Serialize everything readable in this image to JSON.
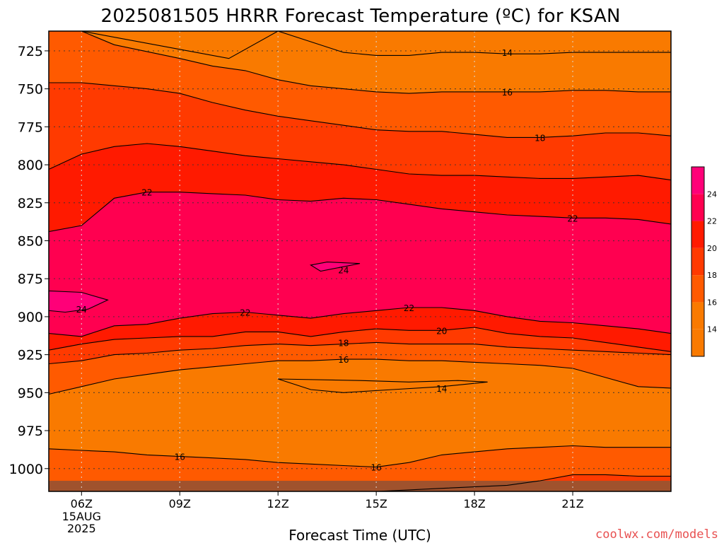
{
  "chart_data": {
    "type": "contour",
    "title": "2025081505 HRRR Forecast Temperature (ºC) for KSAN",
    "xlabel": "Forecast Time (UTC)",
    "ylabel": "",
    "watermark": "coolwx.com/models",
    "x_unit": "hours UTC (2025-08-15)",
    "xlim": [
      5,
      24
    ],
    "ylim": [
      1015,
      712
    ],
    "x_ticks": [
      {
        "x": 6,
        "label": "06Z",
        "sub": [
          "15AUG",
          "2025"
        ]
      },
      {
        "x": 9,
        "label": "09Z",
        "sub": []
      },
      {
        "x": 12,
        "label": "12Z",
        "sub": []
      },
      {
        "x": 15,
        "label": "15Z",
        "sub": []
      },
      {
        "x": 18,
        "label": "18Z",
        "sub": []
      },
      {
        "x": 21,
        "label": "21Z",
        "sub": []
      }
    ],
    "y_ticks": [
      725,
      750,
      775,
      800,
      825,
      850,
      875,
      900,
      925,
      950,
      975,
      1000
    ],
    "grid": true,
    "levels": [
      14,
      16,
      18,
      20,
      22,
      24
    ],
    "colorbar": {
      "labels": [
        "14",
        "16",
        "18",
        "20",
        "22",
        "24"
      ],
      "colors": [
        "#f97a00",
        "#ff5a00",
        "#ff3a00",
        "#ff1a00",
        "#ff0050",
        "#ff0078"
      ]
    },
    "fills": [
      {
        "value_range": "<14",
        "color": "#f97a00"
      },
      {
        "value_range": "14-16",
        "color": "#f97a00"
      },
      {
        "value_range": "16-18",
        "color": "#ff5a00"
      },
      {
        "value_range": "18-20",
        "color": "#ff3a00"
      },
      {
        "value_range": "20-22",
        "color": "#ff1a00"
      },
      {
        "value_range": "22-24",
        "color": "#ff0050"
      },
      {
        "value_range": ">24",
        "color": "#ff0078"
      }
    ],
    "contours": [
      {
        "level": 14,
        "x": [
          5,
          6,
          9,
          10.5,
          12,
          14,
          15,
          16,
          17,
          18,
          19,
          20,
          21,
          22,
          23,
          24
        ],
        "y": [
          712,
          712,
          724,
          730,
          712,
          726,
          728,
          728,
          726,
          726,
          727,
          727,
          726,
          726,
          726,
          726
        ]
      },
      {
        "level": 16,
        "x": [
          5,
          6,
          7,
          9,
          10,
          11,
          12,
          13,
          14,
          15,
          16,
          17,
          18,
          19,
          20,
          21,
          22,
          23,
          24
        ],
        "y": [
          712,
          712,
          721,
          730,
          735,
          738,
          744,
          748,
          750,
          752,
          753,
          752,
          752,
          752,
          752,
          751,
          751,
          752,
          752
        ]
      },
      {
        "level": 18,
        "x": [
          5,
          6,
          7,
          8,
          9,
          10,
          11,
          12,
          13,
          14,
          15,
          16,
          17,
          18,
          19,
          20,
          21,
          22,
          23,
          24
        ],
        "y": [
          746,
          746,
          748,
          750,
          753,
          759,
          764,
          768,
          771,
          774,
          777,
          778,
          778,
          780,
          782,
          782,
          781,
          779,
          779,
          781
        ]
      },
      {
        "level": 20,
        "x": [
          5,
          6,
          7,
          8,
          9,
          10,
          11,
          12,
          13,
          14,
          15,
          16,
          17,
          18,
          19,
          20,
          21,
          22,
          23,
          24
        ],
        "y": [
          803,
          793,
          788,
          786,
          788,
          791,
          794,
          796,
          798,
          800,
          803,
          806,
          807,
          807,
          808,
          809,
          809,
          808,
          807,
          810
        ]
      },
      {
        "level": 22,
        "x": [
          5,
          6,
          7,
          8,
          9,
          10,
          11,
          12,
          13,
          14,
          15,
          16,
          17,
          18,
          19,
          20,
          21,
          22,
          23,
          24
        ],
        "y": [
          844,
          840,
          822,
          818,
          818,
          819,
          820,
          823,
          824,
          822,
          823,
          826,
          829,
          831,
          833,
          834,
          835,
          835,
          836,
          839
        ]
      },
      {
        "level": 24,
        "x": [
          13,
          13.5,
          14.5,
          13.3,
          13
        ],
        "y": [
          866,
          864,
          865,
          870,
          866
        ],
        "closed": true
      },
      {
        "level": 24,
        "x": [
          5,
          6,
          6.8,
          6.2,
          5.5,
          5
        ],
        "y": [
          883,
          884,
          889,
          895,
          897,
          896
        ],
        "closed": true
      },
      {
        "level": 22,
        "x": [
          5,
          6,
          7,
          8,
          9,
          10,
          11,
          12,
          13,
          14,
          15,
          16,
          17,
          18,
          19,
          20,
          21,
          22,
          23,
          24
        ],
        "y": [
          911,
          913,
          906,
          905,
          901,
          898,
          897,
          899,
          901,
          898,
          896,
          894,
          894,
          896,
          900,
          903,
          904,
          906,
          908,
          911
        ]
      },
      {
        "level": 20,
        "x": [
          5,
          6,
          7,
          8,
          9,
          10,
          11,
          12,
          13,
          14,
          15,
          16,
          17,
          18,
          19,
          20,
          21,
          22,
          23,
          24
        ],
        "y": [
          922,
          918,
          915,
          914,
          913,
          913,
          910,
          910,
          913,
          910,
          908,
          909,
          909,
          907,
          911,
          913,
          914,
          917,
          920,
          923
        ]
      },
      {
        "level": 18,
        "x": [
          5,
          6,
          7,
          8,
          9,
          10,
          11,
          12,
          13,
          14,
          15,
          16,
          17,
          18,
          19,
          20,
          21,
          22,
          23,
          24
        ],
        "y": [
          931,
          929,
          925,
          924,
          922,
          921,
          919,
          918,
          919,
          918,
          917,
          918,
          918,
          918,
          920,
          921,
          922,
          923,
          924,
          925
        ]
      },
      {
        "level": 16,
        "x": [
          5,
          6,
          7,
          8,
          9,
          10,
          11,
          12,
          13,
          14,
          15,
          16,
          17,
          18,
          19,
          20,
          21,
          22,
          23,
          24
        ],
        "y": [
          951,
          946,
          941,
          938,
          935,
          933,
          931,
          929,
          929,
          928,
          928,
          929,
          929,
          930,
          931,
          932,
          934,
          940,
          946,
          947
        ]
      },
      {
        "level": 14,
        "x": [
          12.0,
          14.5,
          16.0,
          17.5,
          18.4,
          17.0,
          15.5,
          14.0,
          13.0,
          12.0
        ],
        "y": [
          941,
          942,
          943,
          942,
          943,
          946,
          948,
          950,
          948,
          941
        ],
        "closed": true
      },
      {
        "level": 16,
        "x": [
          5,
          6,
          7,
          8,
          9,
          10,
          11,
          12,
          13,
          14,
          15,
          16,
          17,
          18,
          19,
          20,
          21,
          22,
          23,
          24
        ],
        "y": [
          987,
          988,
          989,
          991,
          992,
          993,
          994,
          996,
          997,
          998,
          999,
          996,
          991,
          989,
          987,
          986,
          985,
          986,
          986,
          986
        ]
      },
      {
        "level": 18,
        "x": [
          5,
          6,
          7,
          8,
          9,
          10,
          11,
          12,
          13,
          14,
          15,
          16,
          17,
          18,
          19,
          20,
          21,
          22,
          23,
          24
        ],
        "y": [
          1015,
          1015,
          1015,
          1015,
          1015,
          1015,
          1015,
          1015,
          1015,
          1015,
          1015,
          1014,
          1013,
          1012,
          1011,
          1008,
          1004,
          1004,
          1005,
          1005
        ]
      }
    ],
    "contour_labels": [
      {
        "text": "14",
        "x": 19.0,
        "y": 726
      },
      {
        "text": "16",
        "x": 19.0,
        "y": 752
      },
      {
        "text": "18",
        "x": 20.0,
        "y": 782
      },
      {
        "text": "22",
        "x": 8.0,
        "y": 818
      },
      {
        "text": "22",
        "x": 21.0,
        "y": 835
      },
      {
        "text": "24",
        "x": 14.0,
        "y": 869
      },
      {
        "text": "24",
        "x": 6.0,
        "y": 895
      },
      {
        "text": "22",
        "x": 11.0,
        "y": 897
      },
      {
        "text": "22",
        "x": 16.0,
        "y": 894
      },
      {
        "text": "20",
        "x": 17.0,
        "y": 909
      },
      {
        "text": "18",
        "x": 14.0,
        "y": 917
      },
      {
        "text": "16",
        "x": 14.0,
        "y": 928
      },
      {
        "text": "14",
        "x": 17.0,
        "y": 947
      },
      {
        "text": "16",
        "x": 9.0,
        "y": 992
      },
      {
        "text": "16",
        "x": 15.0,
        "y": 999
      }
    ],
    "surface_pressure_top": 1008,
    "surface_color": "#a0522d"
  }
}
